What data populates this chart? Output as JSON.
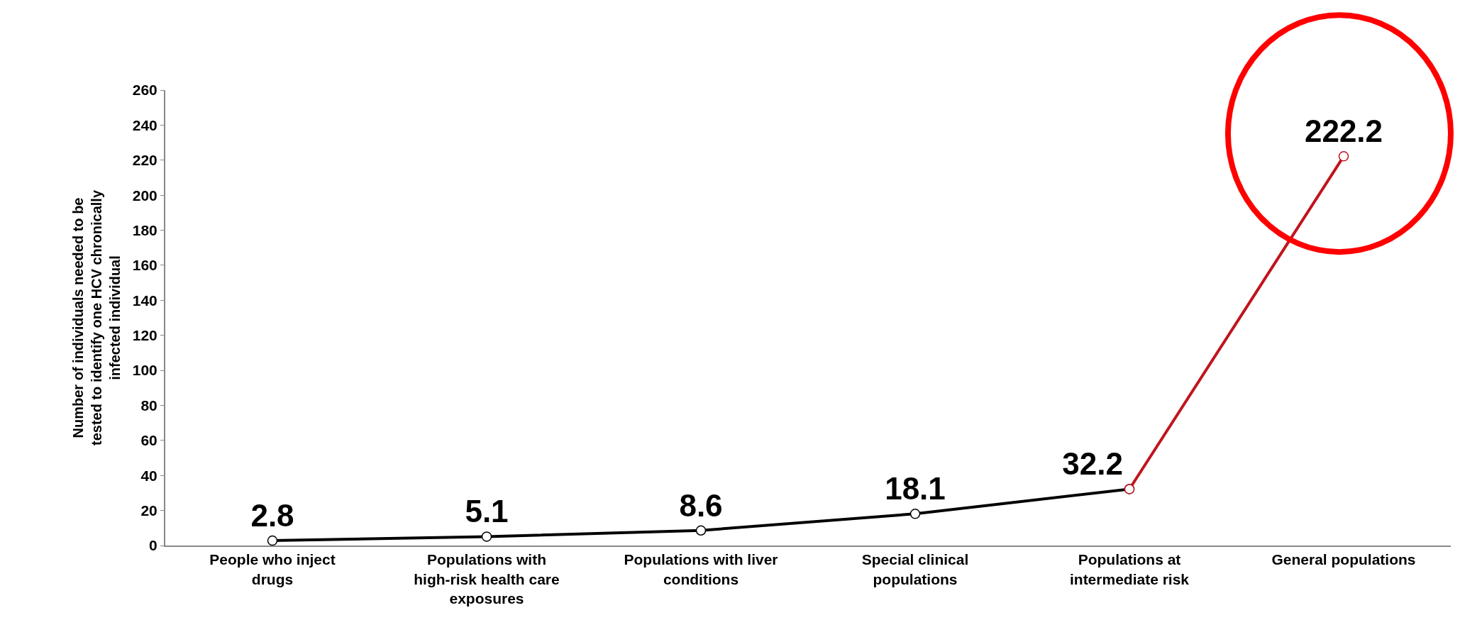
{
  "chart_data": {
    "type": "line",
    "ylabel": "Number of individuals needed to be tested to identify one HCV chronically infected individual",
    "categories": [
      "People who inject drugs",
      "Populations with high-risk health care exposures",
      "Populations with liver conditions",
      "Special clinical populations",
      "Populations at intermediate risk",
      "General populations"
    ],
    "series": [
      {
        "color": "#000000",
        "values": [
          2.8,
          5.1,
          8.6,
          18.1,
          32.2,
          null
        ],
        "value_labels": [
          "2.8",
          "5.1",
          "8.6",
          "18.1",
          "32.2",
          null
        ]
      },
      {
        "color": "#c0141e",
        "values": [
          null,
          null,
          null,
          null,
          32.2,
          222.2
        ],
        "value_labels": [
          null,
          null,
          null,
          null,
          null,
          "222.2"
        ]
      }
    ],
    "ylim": [
      0,
      260
    ],
    "yticks": [
      0,
      20,
      40,
      60,
      80,
      100,
      120,
      140,
      160,
      180,
      200,
      220,
      240,
      260
    ],
    "marker": "circle",
    "line_style": "solid"
  }
}
